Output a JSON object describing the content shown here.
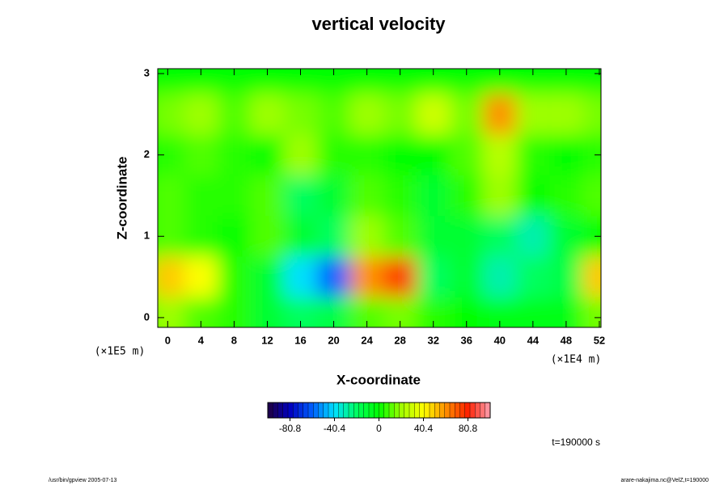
{
  "chart_data": {
    "type": "heatmap",
    "title": "vertical velocity",
    "x_label": "X-coordinate",
    "y_label": "Z-coordinate",
    "x_unit": "(×1E4 m)",
    "y_unit": "(×1E5 m)",
    "x": [
      0,
      4,
      8,
      12,
      16,
      20,
      24,
      28,
      32,
      36,
      40,
      44,
      48,
      52
    ],
    "y": [
      0,
      0.5,
      1,
      1.5,
      2,
      2.5,
      3
    ],
    "values": [
      [
        20,
        10,
        5,
        -10,
        -20,
        -15,
        10,
        15,
        5,
        0,
        -5,
        -5,
        -5,
        15
      ],
      [
        50,
        40,
        5,
        -10,
        -40,
        -60,
        60,
        75,
        -20,
        -10,
        -30,
        -20,
        -15,
        50
      ],
      [
        10,
        5,
        0,
        10,
        -10,
        -20,
        20,
        10,
        -10,
        -10,
        -20,
        -30,
        -10,
        0
      ],
      [
        10,
        5,
        5,
        10,
        -20,
        -10,
        10,
        5,
        -10,
        5,
        20,
        0,
        5,
        10
      ],
      [
        5,
        10,
        5,
        0,
        20,
        5,
        5,
        0,
        0,
        10,
        25,
        5,
        0,
        5
      ],
      [
        15,
        20,
        10,
        20,
        15,
        10,
        20,
        15,
        30,
        15,
        60,
        20,
        20,
        15
      ],
      [
        0,
        0,
        0,
        0,
        0,
        0,
        0,
        0,
        0,
        0,
        0,
        0,
        0,
        0
      ]
    ],
    "xlim": [
      -1.2,
      52.2
    ],
    "ylim": [
      -0.12,
      3.06
    ],
    "xticks": [
      0,
      4,
      8,
      12,
      16,
      20,
      24,
      28,
      32,
      36,
      40,
      44,
      48,
      52
    ],
    "yticks": [
      0,
      1,
      2,
      3
    ],
    "clim": [
      -101,
      101
    ],
    "cticks": [
      -80.8,
      -40.4,
      0,
      40.4,
      80.8
    ],
    "colormap": [
      "#200040",
      "#0000c0",
      "#0060ff",
      "#00e0ff",
      "#00ff60",
      "#00ff00",
      "#a0ff00",
      "#ffff00",
      "#ff9000",
      "#ff2000",
      "#ffa0b0"
    ],
    "time_label": "t=190000 s",
    "footer_left": "/usr/bin/gpview 2005-07-13",
    "footer_right": "arare-nakajima.nc@VelZ,t=190000"
  }
}
